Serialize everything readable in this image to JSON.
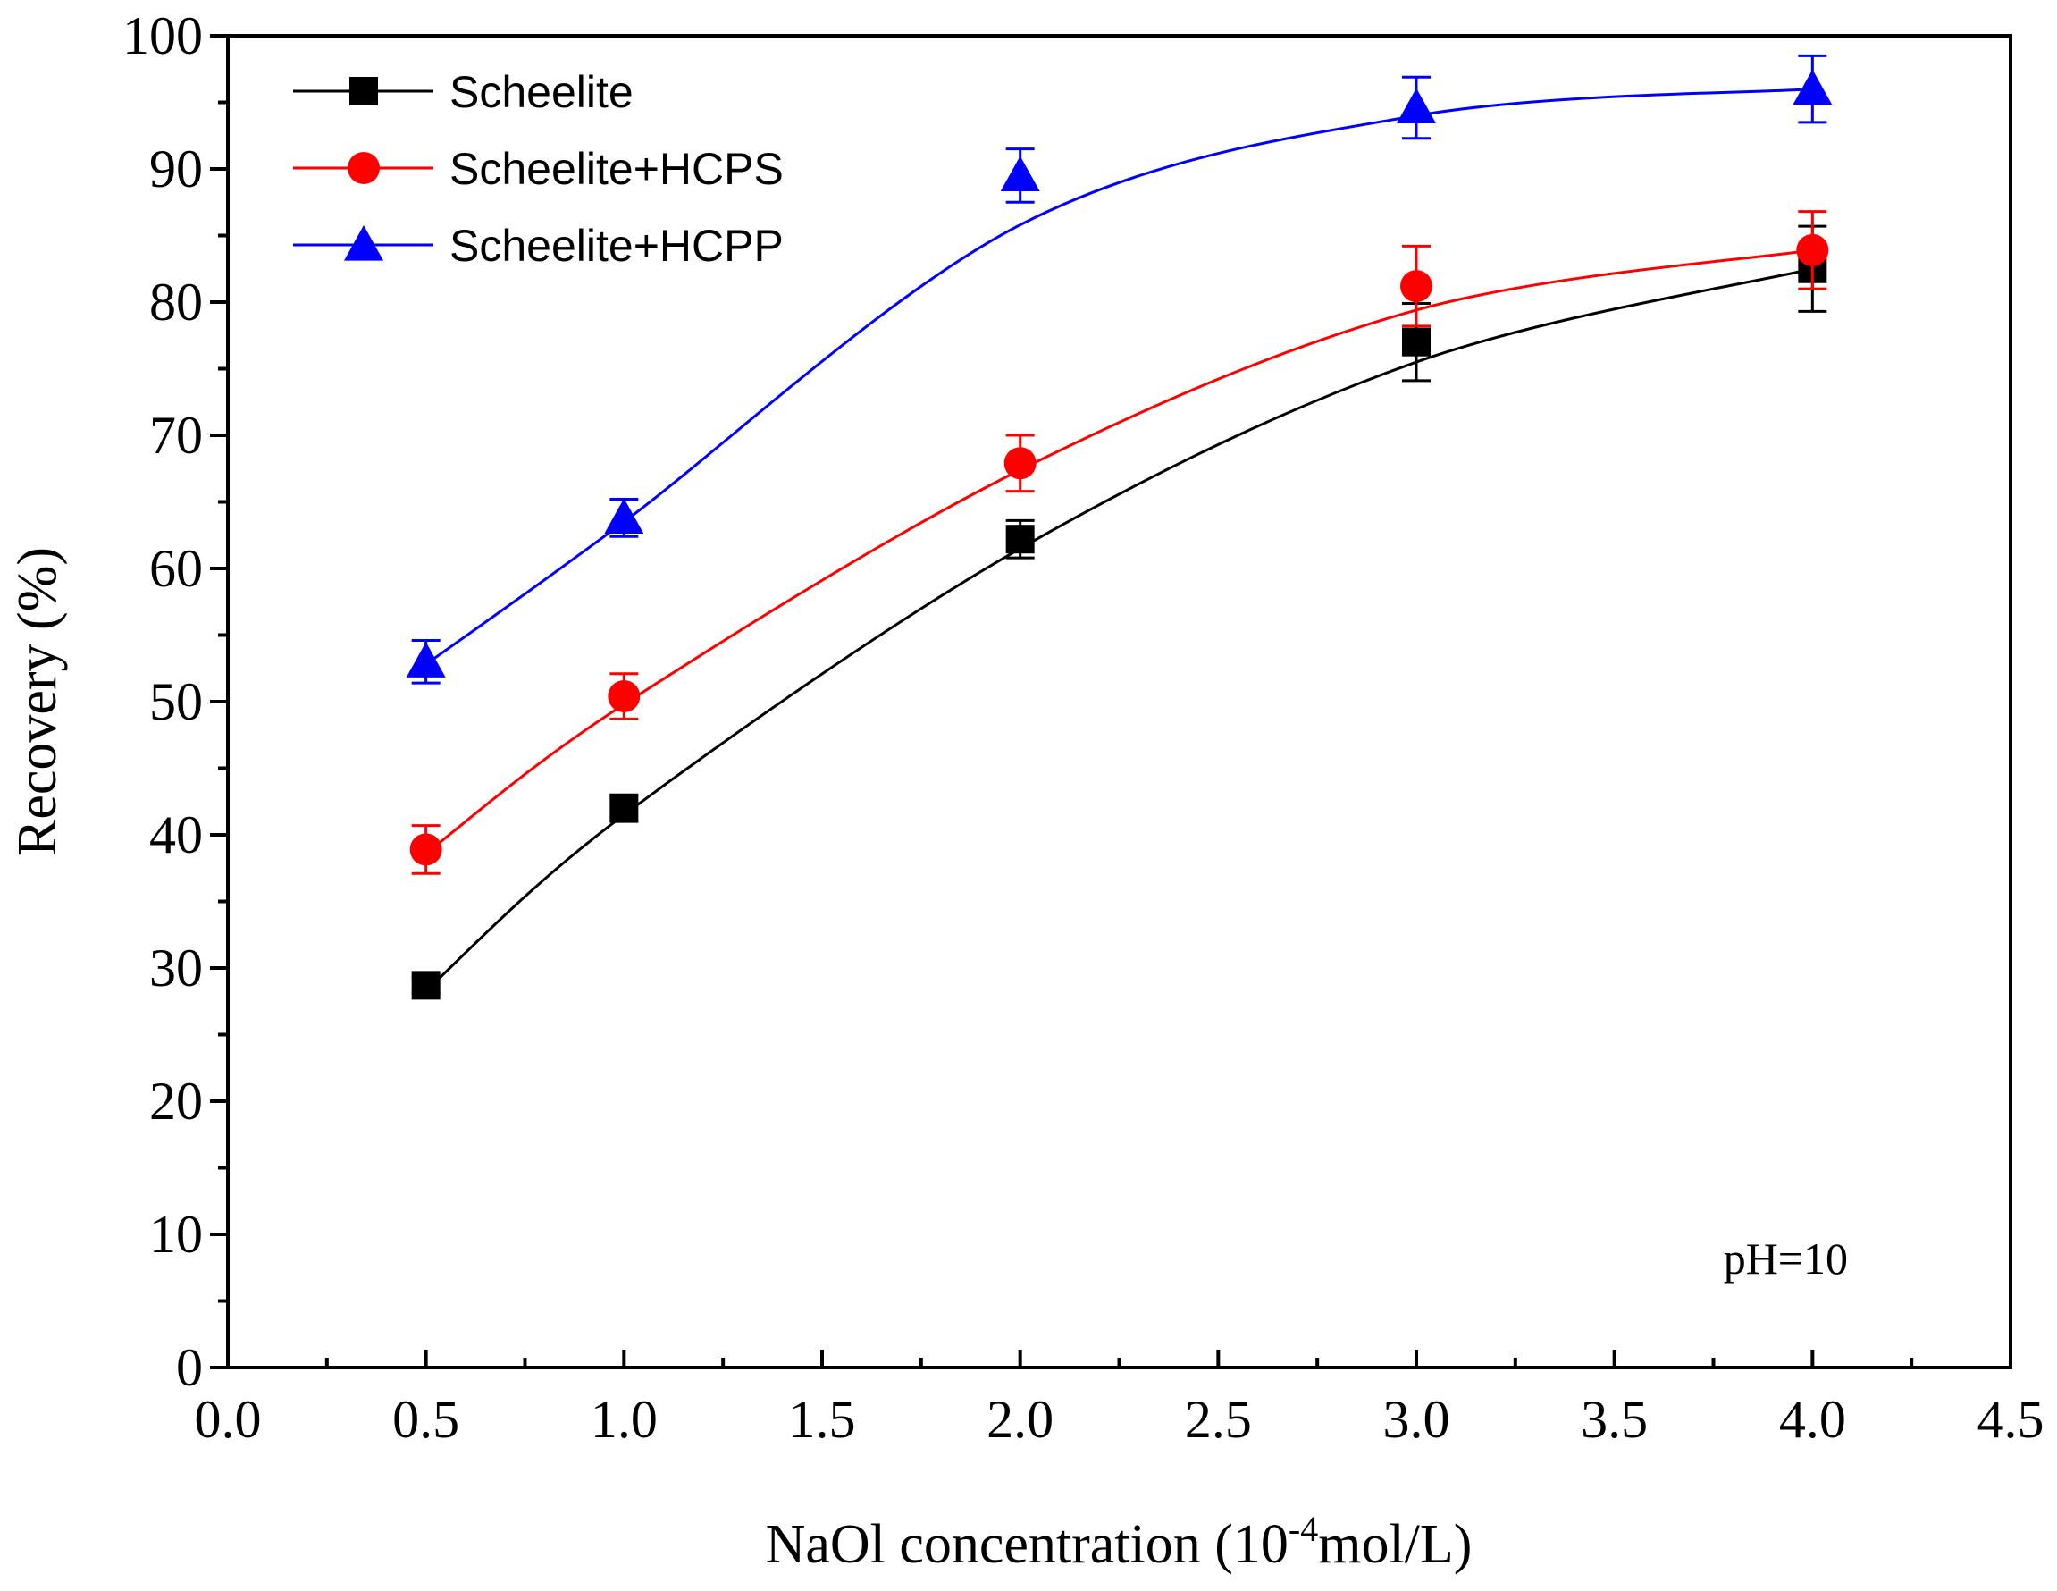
{
  "chart_data": {
    "type": "line",
    "title": "",
    "xlabel": {
      "prefix": "NaOl concentration (10",
      "superscript": "-4",
      "suffix": "mol/L)"
    },
    "ylabel": "Recovery (%)",
    "xlim": [
      0.0,
      4.5
    ],
    "ylim": [
      0,
      100
    ],
    "xticks": [
      "0.0",
      "0.5",
      "1.0",
      "1.5",
      "2.0",
      "2.5",
      "3.0",
      "3.5",
      "4.0",
      "4.5"
    ],
    "yticks": [
      "0",
      "10",
      "20",
      "30",
      "40",
      "50",
      "60",
      "70",
      "80",
      "90",
      "100"
    ],
    "grid": false,
    "legend_position": "top-left",
    "annotation": "pH=10",
    "x": [
      0.5,
      1.0,
      2.0,
      3.0,
      4.0
    ],
    "series": [
      {
        "name": "Scheelite",
        "color": "#000000",
        "marker": "square",
        "values": [
          28.7,
          42.0,
          62.2,
          77.0,
          82.5
        ],
        "errors": [
          0.6,
          1.0,
          1.4,
          2.9,
          3.2
        ],
        "fit": [
          28.3,
          41.5,
          61.5,
          75.5,
          82.5
        ]
      },
      {
        "name": "Scheelite+HCPS",
        "color": "#ff0000",
        "marker": "circle",
        "values": [
          38.9,
          50.4,
          67.9,
          81.2,
          83.9
        ],
        "errors": [
          1.8,
          1.7,
          2.1,
          3.0,
          2.9
        ],
        "fit": [
          38.6,
          49.8,
          67.4,
          79.4,
          83.9
        ]
      },
      {
        "name": "Scheelite+HCPP",
        "color": "#0000ff",
        "marker": "triangle",
        "values": [
          53.0,
          63.8,
          89.5,
          94.6,
          96.0
        ],
        "errors": [
          1.6,
          1.4,
          2.0,
          2.3,
          2.5
        ],
        "fit": [
          52.8,
          63.5,
          85.8,
          94.0,
          96.0
        ]
      }
    ]
  }
}
